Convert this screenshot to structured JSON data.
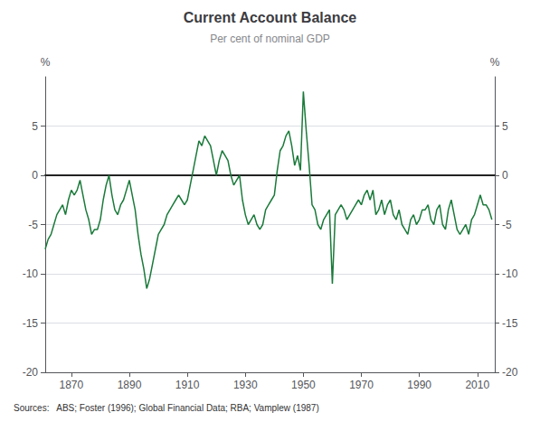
{
  "chart_data": {
    "type": "line",
    "title": "Current Account Balance",
    "subtitle": "Per cent of nominal GDP",
    "ylabel": "%",
    "y2label": "%",
    "source": "Sources:   ABS; Foster (1996); Global Financial Data; RBA; Vamplew (1987)",
    "color": "#1a7a3a",
    "grid": true,
    "xlim": [
      1861,
      2016
    ],
    "xticks": [
      1870,
      1890,
      1910,
      1930,
      1950,
      1970,
      1990,
      2010
    ],
    "ylim": [
      -20,
      10
    ],
    "yticks": [
      -20,
      -15,
      -10,
      -5,
      0,
      5
    ],
    "y2lim": [
      -20,
      10
    ],
    "y2ticks": [
      -20,
      -15,
      -10,
      -5,
      0,
      5
    ],
    "x": [
      1861,
      1862,
      1863,
      1864,
      1865,
      1866,
      1867,
      1868,
      1869,
      1870,
      1871,
      1872,
      1873,
      1874,
      1875,
      1876,
      1877,
      1878,
      1879,
      1880,
      1881,
      1882,
      1883,
      1884,
      1885,
      1886,
      1887,
      1888,
      1889,
      1890,
      1891,
      1892,
      1893,
      1894,
      1895,
      1896,
      1897,
      1898,
      1899,
      1900,
      1901,
      1902,
      1903,
      1904,
      1905,
      1906,
      1907,
      1908,
      1909,
      1910,
      1911,
      1912,
      1913,
      1914,
      1915,
      1916,
      1917,
      1918,
      1919,
      1920,
      1921,
      1922,
      1923,
      1924,
      1925,
      1926,
      1927,
      1928,
      1929,
      1930,
      1931,
      1932,
      1933,
      1934,
      1935,
      1936,
      1937,
      1938,
      1939,
      1940,
      1941,
      1942,
      1943,
      1944,
      1945,
      1946,
      1947,
      1948,
      1949,
      1950,
      1951,
      1952,
      1953,
      1954,
      1955,
      1956,
      1957,
      1958,
      1959,
      1960,
      1961,
      1962,
      1963,
      1964,
      1965,
      1966,
      1967,
      1968,
      1969,
      1970,
      1971,
      1972,
      1973,
      1974,
      1975,
      1976,
      1977,
      1978,
      1979,
      1980,
      1981,
      1982,
      1983,
      1984,
      1985,
      1986,
      1987,
      1988,
      1989,
      1990,
      1991,
      1992,
      1993,
      1994,
      1995,
      1996,
      1997,
      1998,
      1999,
      2000,
      2001,
      2002,
      2003,
      2004,
      2005,
      2006,
      2007,
      2008,
      2009,
      2010,
      2011,
      2012,
      2013,
      2014,
      2015
    ],
    "values": [
      -7.5,
      -6.5,
      -6.0,
      -5.0,
      -4.0,
      -3.5,
      -3.0,
      -4.0,
      -2.5,
      -1.5,
      -2.0,
      -1.5,
      -0.5,
      -2.0,
      -3.5,
      -4.5,
      -6.0,
      -5.5,
      -5.5,
      -4.5,
      -2.5,
      -1.0,
      0.0,
      -2.0,
      -3.5,
      -4.0,
      -3.0,
      -2.5,
      -1.5,
      -0.5,
      -2.0,
      -3.5,
      -6.0,
      -8.0,
      -9.5,
      -11.5,
      -10.5,
      -9.0,
      -7.5,
      -6.0,
      -5.5,
      -5.0,
      -4.0,
      -3.5,
      -3.0,
      -2.5,
      -2.0,
      -2.5,
      -3.0,
      -2.5,
      -1.0,
      0.5,
      2.0,
      3.5,
      3.0,
      4.0,
      3.5,
      3.0,
      1.5,
      0.0,
      1.5,
      2.5,
      2.0,
      1.5,
      0.0,
      -1.0,
      -0.5,
      0.0,
      -2.5,
      -4.0,
      -5.0,
      -4.5,
      -4.0,
      -5.0,
      -5.5,
      -5.0,
      -3.5,
      -3.0,
      -2.5,
      -2.0,
      0.5,
      2.5,
      3.0,
      4.0,
      4.5,
      3.0,
      1.0,
      2.0,
      0.5,
      8.5,
      4.5,
      1.0,
      -3.0,
      -3.5,
      -5.0,
      -5.5,
      -4.5,
      -4.0,
      -3.5,
      -11.0,
      -4.0,
      -3.5,
      -3.0,
      -3.5,
      -4.5,
      -4.0,
      -3.5,
      -3.0,
      -2.5,
      -3.0,
      -2.0,
      -1.5,
      -2.5,
      -1.5,
      -4.0,
      -3.5,
      -2.5,
      -4.0,
      -3.0,
      -2.5,
      -4.0,
      -4.5,
      -3.5,
      -5.0,
      -5.5,
      -6.0,
      -4.5,
      -4.0,
      -5.0,
      -4.5,
      -3.5,
      -3.5,
      -3.0,
      -4.5,
      -5.0,
      -3.5,
      -3.0,
      -5.0,
      -5.5,
      -3.5,
      -2.5,
      -4.0,
      -5.5,
      -6.0,
      -5.5,
      -5.0,
      -6.0,
      -4.5,
      -4.0,
      -3.0,
      -2.0,
      -3.0,
      -3.0,
      -3.5,
      -4.5
    ]
  }
}
